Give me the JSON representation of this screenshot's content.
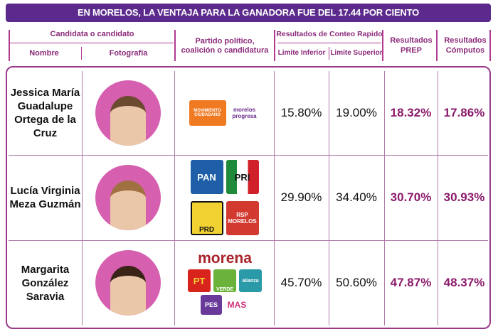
{
  "title": "EN MORELOS, LA VENTAJA PARA LA GANADORA FUE DEL 17.44 POR CIENTO",
  "headers": {
    "candidate": "Candidata o candidato",
    "name": "Nombre",
    "photo": "Fotografía",
    "party": "Partido político, coalición o candidatura",
    "quick_count": "Resultados de Conteo Rapido",
    "lower": "Limite Inferior",
    "upper": "Limite Superior",
    "prep": "Resultados PREP",
    "computos": "Resultados Cómputos"
  },
  "rows": [
    {
      "name": "Jessica María Guadalupe Ortega de la Cruz",
      "parties": [
        "MOVIMIENTO CIUDADANO",
        "morelos progresa"
      ],
      "lower": "15.80%",
      "upper": "19.00%",
      "prep": "18.32%",
      "computos": "17.86%"
    },
    {
      "name": "Lucía Virginia Meza Guzmán",
      "parties": [
        "PAN",
        "PRI",
        "PRD",
        "RSP MORELOS"
      ],
      "lower": "29.90%",
      "upper": "34.40%",
      "prep": "30.70%",
      "computos": "30.93%"
    },
    {
      "name": "Margarita González Saravia",
      "parties": [
        "morena",
        "PT",
        "VERDE",
        "alianza",
        "PES",
        "MAS"
      ],
      "lower": "45.70%",
      "upper": "50.60%",
      "prep": "47.87%",
      "computos": "48.37%"
    }
  ]
}
